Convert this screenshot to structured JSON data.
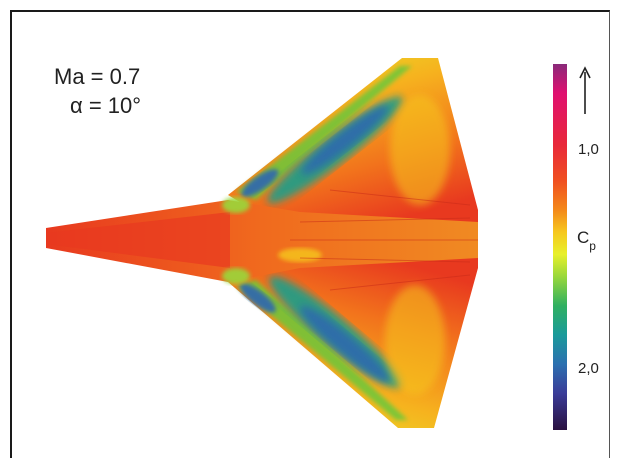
{
  "figure": {
    "mach_label": "Ma = 0.7",
    "alpha_label": "α = 10°"
  },
  "colorbar": {
    "tick_top": "1,0",
    "tick_bottom": "2,0",
    "quantity_symbol": "C",
    "quantity_subscript": "p",
    "colors": [
      "#e01070",
      "#e8283a",
      "#f05020",
      "#f48a1a",
      "#f6c81e",
      "#e8f02a",
      "#9ad83a",
      "#30b060",
      "#1a9a9a",
      "#2c70b0",
      "#3a3c98",
      "#401868",
      "#2a1040"
    ]
  },
  "surface_colors": {
    "hot": "#e8391f",
    "warm": "#f2741c",
    "mid": "#f6b21e",
    "yellow": "#e8e42a",
    "green": "#6cc83a",
    "teal": "#1f9e8a",
    "blue": "#2e66b0"
  }
}
